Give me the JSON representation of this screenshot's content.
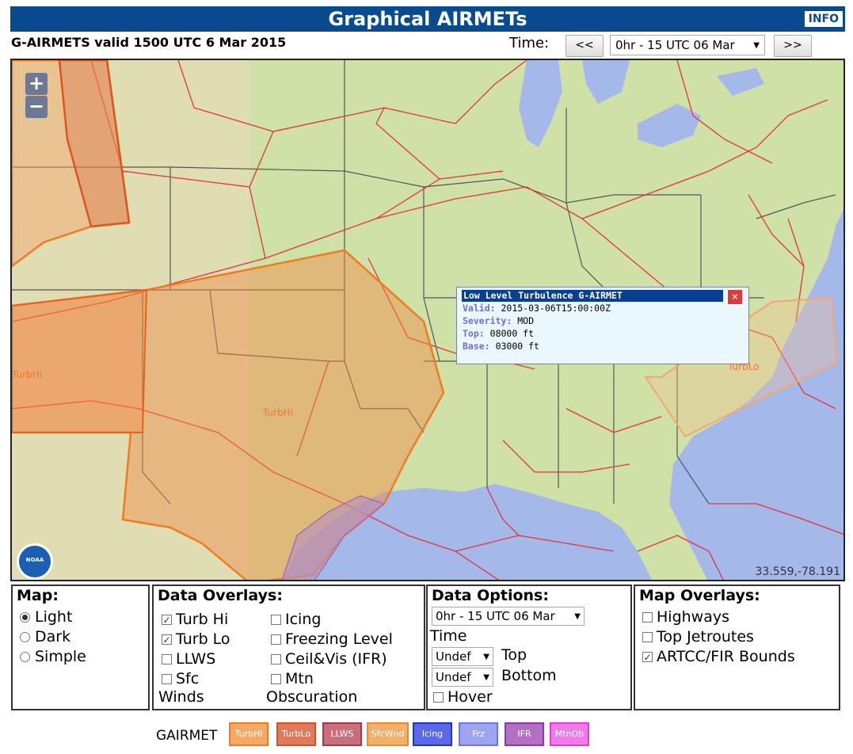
{
  "header": {
    "title": "Graphical AIRMETs",
    "info_label": "INFO"
  },
  "valid_text": "G-AIRMETS valid 1500 UTC 6 Mar 2015",
  "time": {
    "label": "Time:",
    "prev_label": "<<",
    "next_label": ">>",
    "selected": "0hr - 15 UTC 06 Mar"
  },
  "map": {
    "zoom_in": "+",
    "zoom_out": "−",
    "coords": "33.559,-78.191",
    "logo_text": "NOAA",
    "labels": [
      "TurbHi",
      "TurbHi",
      "TurbLo"
    ]
  },
  "popup": {
    "title": "Low Level Turbulence G-AIRMET",
    "close": "×",
    "rows": [
      {
        "key": "Valid:",
        "value": "2015-03-06T15:00:00Z"
      },
      {
        "key": "Severity:",
        "value": "MOD"
      },
      {
        "key": "Top:",
        "value": "08000 ft"
      },
      {
        "key": "Base:",
        "value": "03000 ft"
      }
    ]
  },
  "panels": {
    "map": {
      "title": "Map:",
      "options": [
        "Light",
        "Dark",
        "Simple"
      ],
      "selected": "Light"
    },
    "data_overlays": {
      "title": "Data Overlays:",
      "items": [
        {
          "label": "Turb Hi",
          "checked": true
        },
        {
          "label": "Turb Lo",
          "checked": true
        },
        {
          "label": "LLWS",
          "checked": false
        },
        {
          "label": "Sfc",
          "checked": false
        },
        {
          "label": "Icing",
          "checked": false
        },
        {
          "label": "Freezing Level",
          "checked": false
        },
        {
          "label": "Ceil&Vis (IFR)",
          "checked": false
        },
        {
          "label": "Mtn",
          "checked": false
        }
      ],
      "sfc_cont": "Winds",
      "mtn_cont": "Obscuration"
    },
    "data_options": {
      "title": "Data Options:",
      "time_select": "0hr - 15 UTC 06 Mar",
      "time_label": "Time",
      "top_select": "Undef",
      "top_label": "Top",
      "bottom_select": "Undef",
      "bottom_label": "Bottom",
      "hover_label": "Hover",
      "hover_checked": false
    },
    "map_overlays": {
      "title": "Map Overlays:",
      "items": [
        {
          "label": "Highways",
          "checked": false
        },
        {
          "label": "Top Jetroutes",
          "checked": false
        },
        {
          "label": "ARTCC/FIR Bounds",
          "checked": true
        }
      ]
    }
  },
  "legend": {
    "label": "GAIRMET",
    "items": [
      {
        "label": "TurbHi",
        "color": "#f07b22",
        "fill": "#f6a865"
      },
      {
        "label": "TurbLo",
        "color": "#c8552e",
        "fill": "#e07a58"
      },
      {
        "label": "LLWS",
        "color": "#a8374a",
        "fill": "#c76f7d"
      },
      {
        "label": "SfcWnd",
        "color": "#e88a2c",
        "fill": "#f3b06a"
      },
      {
        "label": "Icing",
        "color": "#2233c8",
        "fill": "#5a6ae6"
      },
      {
        "label": "Frz",
        "color": "#6e74e0",
        "fill": "#9ea4f0"
      },
      {
        "label": "IFR",
        "color": "#8b3a9e",
        "fill": "#b36fc4"
      },
      {
        "label": "MtnOb",
        "color": "#e23ad9",
        "fill": "#f17ae9"
      }
    ]
  }
}
